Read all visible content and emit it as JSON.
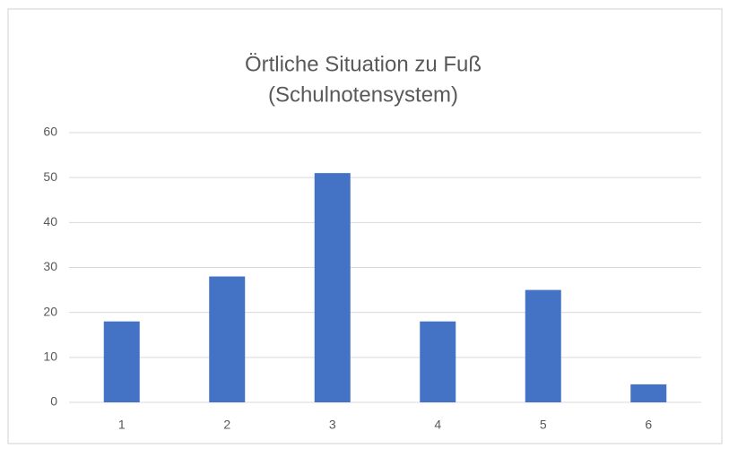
{
  "chart_data": {
    "type": "bar",
    "title": [
      "Örtliche Situation zu Fuß",
      "(Schulnotensystem)"
    ],
    "categories": [
      "1",
      "2",
      "3",
      "4",
      "5",
      "6"
    ],
    "values": [
      18,
      28,
      51,
      18,
      25,
      4
    ],
    "color": "#4472c4",
    "ylim": [
      0,
      60
    ],
    "yticks": [
      0,
      10,
      20,
      30,
      40,
      50,
      60
    ],
    "grid": true
  }
}
